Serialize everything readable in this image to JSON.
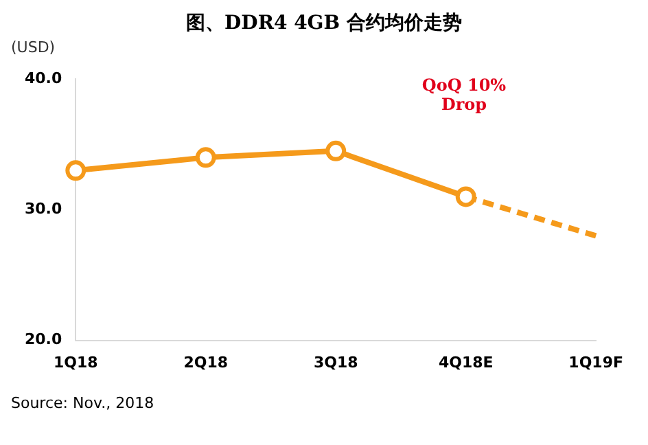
{
  "chart_data": {
    "type": "line",
    "title": "图、DDR4 4GB 合约均价走势",
    "ylabel": "(USD)",
    "categories": [
      "1Q18",
      "2Q18",
      "3Q18",
      "4Q18E",
      "1Q19F"
    ],
    "series": [
      {
        "color": "#f59a1b",
        "values": [
          33.0,
          34.0,
          34.5,
          31.0,
          null
        ],
        "marker": "circle",
        "line_style": "solid"
      },
      {
        "color": "#f59a1b",
        "values": [
          null,
          null,
          null,
          31.0,
          28.0
        ],
        "marker": "none",
        "line_style": "dashed"
      }
    ],
    "ylim": [
      20,
      40
    ],
    "yticks": [
      {
        "value": 20,
        "label": "20.0"
      },
      {
        "value": 30,
        "label": "30.0"
      },
      {
        "value": 40,
        "label": "40.0"
      }
    ],
    "annotations": [
      "QoQ 10% Drop",
      "Source: Nov., 2018"
    ]
  }
}
